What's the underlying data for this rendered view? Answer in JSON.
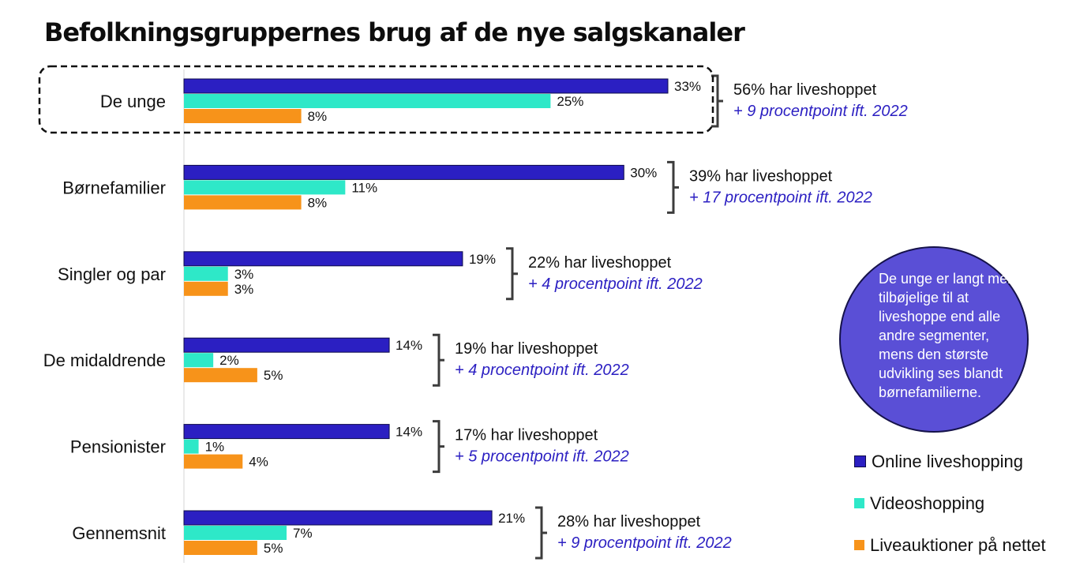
{
  "chart_data": {
    "type": "bar",
    "orientation": "horizontal",
    "title": "Befolkningsgruppernes brug af de nye salgskanaler",
    "categories": [
      "De unge",
      "Børnefamilier",
      "Singler og par",
      "De midaldrende",
      "Pensionister",
      "Gennemsnit"
    ],
    "series": [
      {
        "name": "Online liveshopping",
        "color": "#2b1fc2",
        "values": [
          33,
          30,
          19,
          14,
          14,
          21
        ]
      },
      {
        "name": "Videoshopping",
        "color": "#2ee8c8",
        "values": [
          25,
          11,
          3,
          2,
          1,
          7
        ]
      },
      {
        "name": "Liveauktioner på nettet",
        "color": "#f7931a",
        "values": [
          8,
          8,
          3,
          5,
          4,
          5
        ]
      }
    ],
    "value_suffix": "%",
    "xlim": [
      0,
      33
    ],
    "highlighted_category": "De unge",
    "annotations": [
      {
        "category": "De unge",
        "main": "56% har liveshoppet",
        "sub": "+ 9 procentpoint ift. 2022"
      },
      {
        "category": "Børnefamilier",
        "main": "39% har liveshoppet",
        "sub": "+ 17 procentpoint ift. 2022"
      },
      {
        "category": "Singler og par",
        "main": "22% har liveshoppet",
        "sub": "+ 4 procentpoint ift. 2022"
      },
      {
        "category": "De midaldrende",
        "main": "19% har liveshoppet",
        "sub": "+ 4 procentpoint ift. 2022"
      },
      {
        "category": "Pensionister",
        "main": "17% har liveshoppet",
        "sub": "+ 5 procentpoint ift. 2022"
      },
      {
        "category": "Gennemsnit",
        "main": "28% har liveshoppet",
        "sub": "+ 9 procentpoint ift. 2022"
      }
    ],
    "annotation_sub_color": "#2b1fc2",
    "legend_position": "bottom-right",
    "grid": false
  },
  "callout": {
    "text": "De unge er langt mere tilbøjelige til at liveshoppe end alle andre segmenter, mens den største udvikling ses blandt børnefamilierne.",
    "background": "#5a4fd6"
  }
}
